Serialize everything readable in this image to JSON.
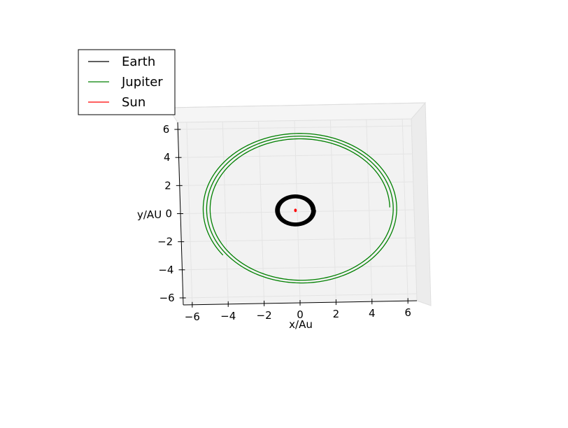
{
  "chart_data": {
    "type": "line",
    "projection": "3d",
    "title": "",
    "xlabel": "x/Au",
    "ylabel": "y/AU",
    "xlim": [
      -6.5,
      6.5
    ],
    "ylim": [
      -6.5,
      6.5
    ],
    "xticks": [
      -6,
      -4,
      -2,
      0,
      2,
      4,
      6
    ],
    "yticks": [
      -6,
      -4,
      -2,
      0,
      2,
      4,
      6
    ],
    "xtick_labels": [
      "−6",
      "−4",
      "−2",
      "0",
      "2",
      "4",
      "6"
    ],
    "ytick_labels": [
      "−6",
      "−4",
      "−2",
      "0",
      "2",
      "4",
      "6"
    ],
    "grid": true,
    "legend_position": "top-left",
    "series": [
      {
        "name": "Earth",
        "color": "#000000",
        "kind": "orbit",
        "center": [
          -0.1,
          0.1
        ],
        "radius": 1.0,
        "turns": 12,
        "radius_spread": 0.12
      },
      {
        "name": "Jupiter",
        "color": "#008000",
        "kind": "orbit",
        "center": [
          0.2,
          0.2
        ],
        "radius": 5.2,
        "turns": 2.6,
        "radius_spread": 0.25,
        "start_angle_deg": 0
      },
      {
        "name": "Sun",
        "color": "#ff0000",
        "kind": "point",
        "center": [
          -0.1,
          0.1
        ],
        "radius": 0.06
      }
    ]
  }
}
